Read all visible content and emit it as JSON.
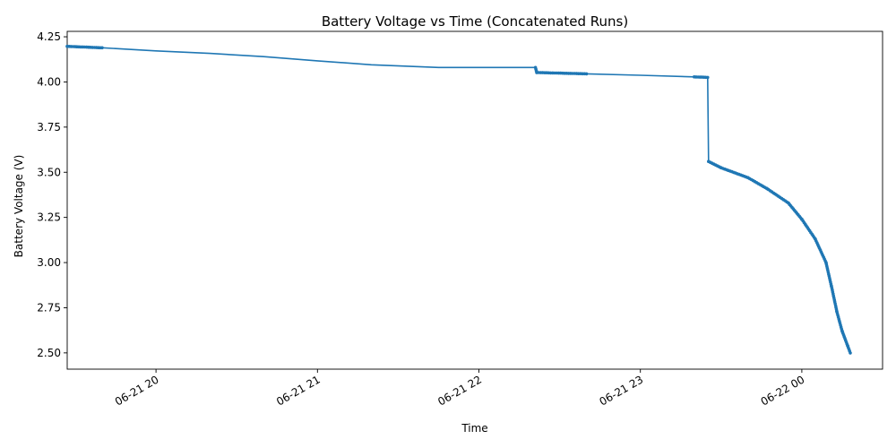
{
  "chart_data": {
    "type": "line",
    "title": "Battery Voltage vs Time (Concatenated Runs)",
    "xlabel": "Time",
    "ylabel": "Battery Voltage (V)",
    "x_ticks": [
      "06-21 20",
      "06-21 21",
      "06-21 22",
      "06-21 23",
      "06-22 00"
    ],
    "y_ticks": [
      "2.50",
      "2.75",
      "3.00",
      "3.25",
      "3.50",
      "3.75",
      "4.00",
      "4.25"
    ],
    "xlim": [
      "2024-06-21 19:27",
      "2024-06-22 00:30"
    ],
    "ylim": [
      2.41,
      4.28
    ],
    "grid": false,
    "legend": "none",
    "series_color": "#1f77b4",
    "series": [
      {
        "x": [
          "2024-06-21 19:27",
          "2024-06-21 19:40",
          "2024-06-21 20:00",
          "2024-06-21 20:20",
          "2024-06-21 20:40",
          "2024-06-21 21:00",
          "2024-06-21 21:20",
          "2024-06-21 21:45",
          "2024-06-21 22:21",
          "2024-06-21 22:21:30",
          "2024-06-21 22:40",
          "2024-06-21 23:00",
          "2024-06-21 23:20",
          "2024-06-21 23:25",
          "2024-06-21 23:25:20",
          "2024-06-21 23:30",
          "2024-06-21 23:40",
          "2024-06-21 23:47",
          "2024-06-21 23:55",
          "2024-06-22 00:00",
          "2024-06-22 00:05",
          "2024-06-22 00:09",
          "2024-06-22 00:11",
          "2024-06-22 00:13",
          "2024-06-22 00:15",
          "2024-06-22 00:17",
          "2024-06-22 00:18"
        ],
        "y": [
          4.197,
          4.189,
          4.172,
          4.158,
          4.14,
          4.117,
          4.095,
          4.08,
          4.08,
          4.052,
          4.045,
          4.037,
          4.028,
          4.025,
          3.56,
          3.525,
          3.47,
          3.41,
          3.33,
          3.24,
          3.13,
          3.0,
          2.87,
          2.73,
          2.62,
          2.54,
          2.5
        ]
      }
    ]
  }
}
